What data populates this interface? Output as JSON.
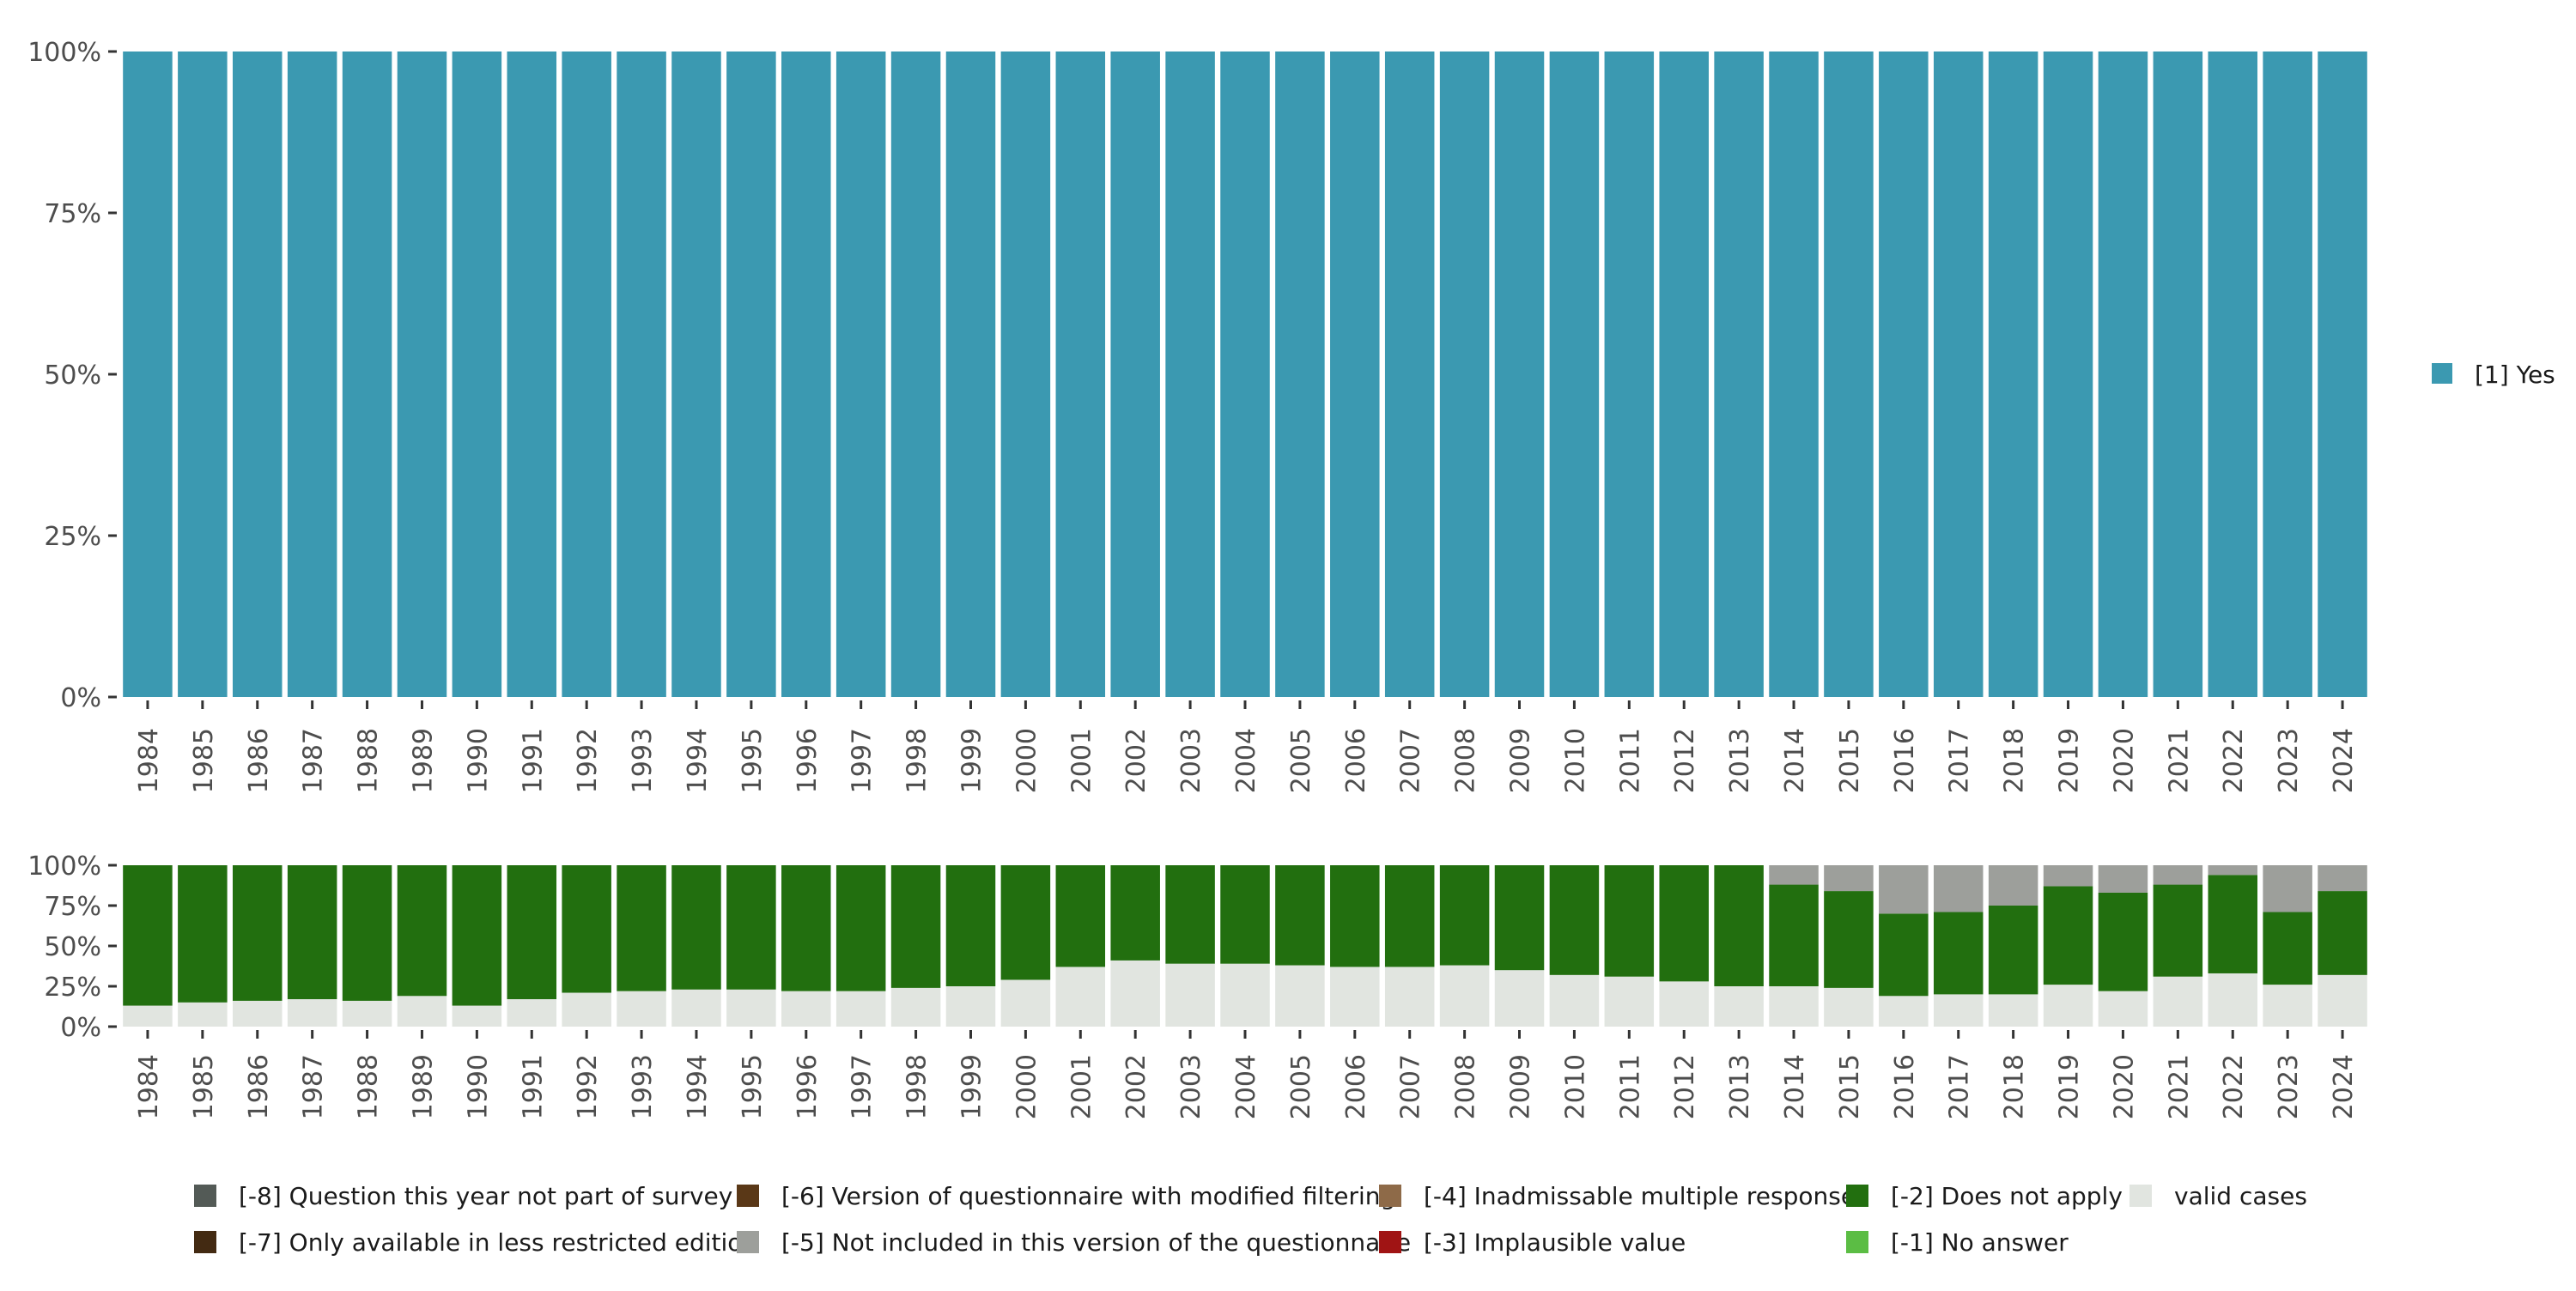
{
  "chart_data": [
    {
      "type": "bar",
      "stacked": true,
      "panel": "top",
      "categories": [
        "1984",
        "1985",
        "1986",
        "1987",
        "1988",
        "1989",
        "1990",
        "1991",
        "1992",
        "1993",
        "1994",
        "1995",
        "1996",
        "1997",
        "1998",
        "1999",
        "2000",
        "2001",
        "2002",
        "2003",
        "2004",
        "2005",
        "2006",
        "2007",
        "2008",
        "2009",
        "2010",
        "2011",
        "2012",
        "2013",
        "2014",
        "2015",
        "2016",
        "2017",
        "2018",
        "2019",
        "2020",
        "2021",
        "2022",
        "2023",
        "2024"
      ],
      "series": [
        {
          "name": "[1] Yes",
          "color": "#3b99b1",
          "values": [
            100,
            100,
            100,
            100,
            100,
            100,
            100,
            100,
            100,
            100,
            100,
            100,
            100,
            100,
            100,
            100,
            100,
            100,
            100,
            100,
            100,
            100,
            100,
            100,
            100,
            100,
            100,
            100,
            100,
            100,
            100,
            100,
            100,
            100,
            100,
            100,
            100,
            100,
            100,
            100,
            100
          ]
        }
      ],
      "yticks": [
        "0%",
        "25%",
        "50%",
        "75%",
        "100%"
      ],
      "ylim": [
        0,
        100
      ],
      "legend": {
        "position": "right",
        "items": [
          "[1] Yes"
        ]
      }
    },
    {
      "type": "bar",
      "stacked": true,
      "panel": "bottom",
      "categories": [
        "1984",
        "1985",
        "1986",
        "1987",
        "1988",
        "1989",
        "1990",
        "1991",
        "1992",
        "1993",
        "1994",
        "1995",
        "1996",
        "1997",
        "1998",
        "1999",
        "2000",
        "2001",
        "2002",
        "2003",
        "2004",
        "2005",
        "2006",
        "2007",
        "2008",
        "2009",
        "2010",
        "2011",
        "2012",
        "2013",
        "2014",
        "2015",
        "2016",
        "2017",
        "2018",
        "2019",
        "2020",
        "2021",
        "2022",
        "2023",
        "2024"
      ],
      "series": [
        {
          "name": "valid cases",
          "color": "#e1e5e0",
          "values": [
            13,
            15,
            16,
            17,
            16,
            19,
            13,
            17,
            21,
            22,
            23,
            23,
            22,
            22,
            24,
            25,
            29,
            37,
            41,
            39,
            39,
            38,
            37,
            37,
            38,
            35,
            32,
            31,
            28,
            25,
            25,
            24,
            19,
            20,
            20,
            26,
            22,
            31,
            33,
            26,
            32
          ]
        },
        {
          "name": "[-2] Does not apply",
          "color": "#226f0f",
          "values": [
            87,
            85,
            84,
            83,
            84,
            81,
            87,
            83,
            79,
            78,
            77,
            77,
            78,
            78,
            76,
            75,
            71,
            63,
            59,
            61,
            61,
            62,
            63,
            63,
            62,
            65,
            68,
            69,
            72,
            75,
            63,
            60,
            51,
            51,
            55,
            61,
            61,
            57,
            61,
            45,
            52
          ]
        },
        {
          "name": "[-5] Not included in this version of the questionnaire",
          "color": "#9d9f9b",
          "values": [
            0,
            0,
            0,
            0,
            0,
            0,
            0,
            0,
            0,
            0,
            0,
            0,
            0,
            0,
            0,
            0,
            0,
            0,
            0,
            0,
            0,
            0,
            0,
            0,
            0,
            0,
            0,
            0,
            0,
            0,
            12,
            16,
            30,
            29,
            25,
            13,
            17,
            12,
            6,
            29,
            16
          ]
        }
      ],
      "yticks": [
        "0%",
        "25%",
        "50%",
        "75%",
        "100%"
      ],
      "ylim": [
        0,
        100
      ]
    }
  ],
  "legend_bottom": [
    [
      {
        "label": "[-8] Question this year not part of survey",
        "color": "#535a56"
      },
      {
        "label": "[-6] Version of questionnaire with modified filtering",
        "color": "#5a3817"
      },
      {
        "label": "[-4] Inadmissable multiple response",
        "color": "#8e6a48"
      },
      {
        "label": "[-2] Does not apply",
        "color": "#226f0f"
      },
      {
        "label": "valid cases",
        "color": "#e1e5e0"
      }
    ],
    [
      {
        "label": "[-7] Only available in less restricted edition",
        "color": "#432a12"
      },
      {
        "label": "[-5] Not included in this version of the questionnaire",
        "color": "#9d9f9b"
      },
      {
        "label": "[-3] Implausible value",
        "color": "#a01414"
      },
      {
        "label": "[-1] No answer",
        "color": "#5bbd44"
      }
    ]
  ]
}
